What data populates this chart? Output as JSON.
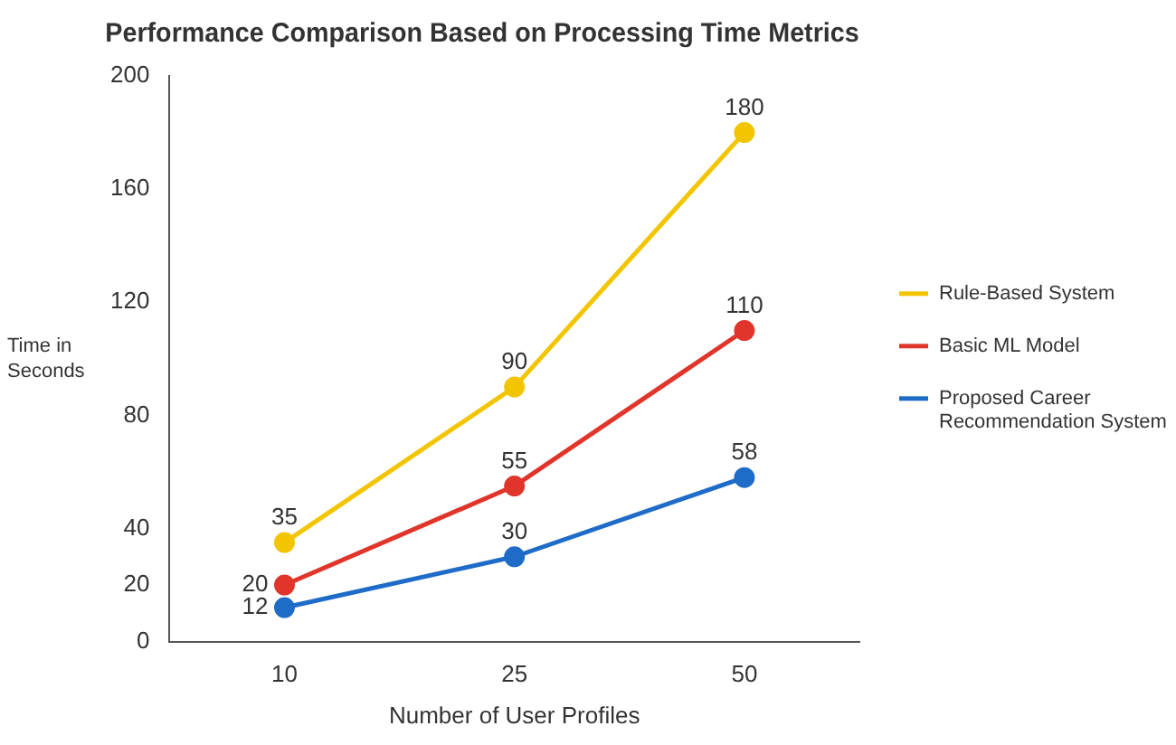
{
  "chart_data": {
    "type": "line",
    "title": "Performance Comparison Based on Processing Time Metrics",
    "xlabel": "Number of User Profiles",
    "ylabel": "Time in Seconds",
    "categories": [
      "10",
      "25",
      "50"
    ],
    "series": [
      {
        "name": "Rule-Based System",
        "color": "#f2c500",
        "values": [
          35,
          90,
          180
        ]
      },
      {
        "name": "Basic ML Model",
        "color": "#e0352b",
        "values": [
          20,
          55,
          110
        ]
      },
      {
        "name": "Proposed Career Recommendation System",
        "color": "#1e6cc8",
        "values": [
          12,
          30,
          58
        ]
      }
    ],
    "ylim": [
      0,
      200
    ],
    "yticks": [
      0,
      20,
      40,
      80,
      120,
      160,
      200
    ],
    "grid": false,
    "legend": "right",
    "marker": "circle",
    "line_style": "solid",
    "data_labels": true
  }
}
